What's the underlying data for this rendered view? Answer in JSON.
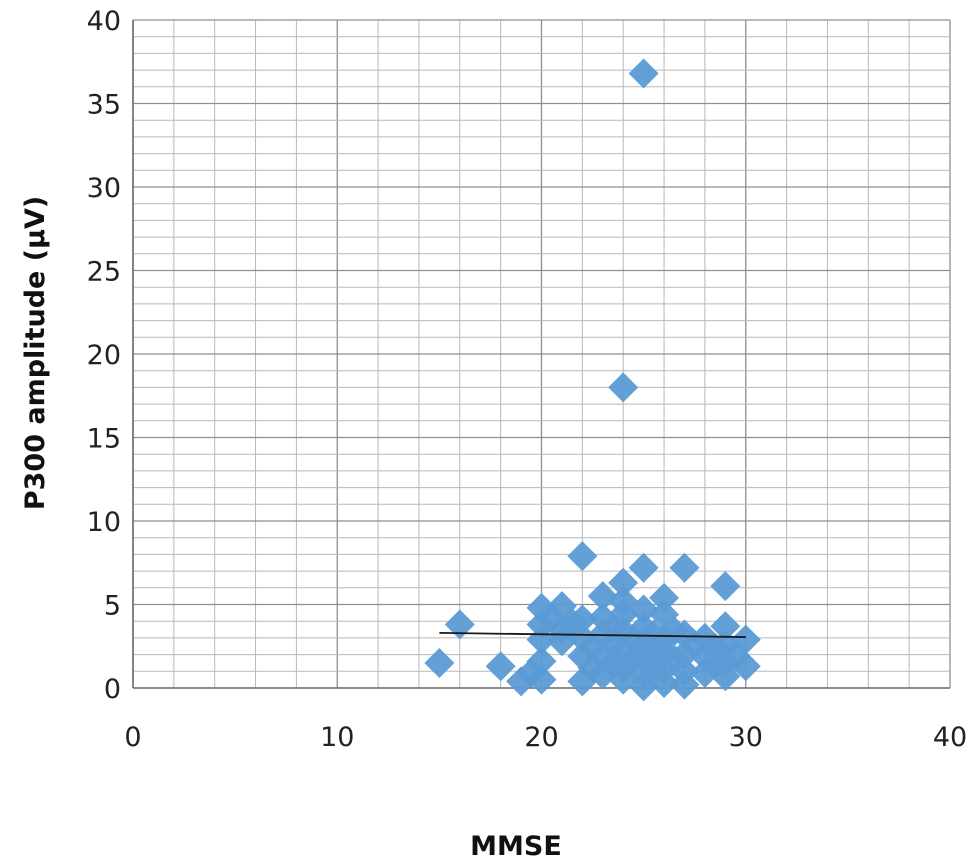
{
  "chart_data": {
    "type": "scatter",
    "title": "",
    "xlabel": "MMSE",
    "ylabel": "P300 amplitude (µV)",
    "xlim": [
      0,
      40
    ],
    "ylim": [
      0,
      40
    ],
    "x_ticks": [
      "0",
      "10",
      "20",
      "30",
      "40"
    ],
    "y_ticks": [
      "0",
      "5",
      "10",
      "15",
      "20",
      "25",
      "30",
      "35",
      "40"
    ],
    "x_minor_step": 2,
    "y_minor_step": 1,
    "grid": true,
    "legend": "none",
    "marker": "diamond",
    "marker_color": "#5b9bd5",
    "trendline_color": "#1a1a1a",
    "trendline": {
      "x": [
        15,
        30
      ],
      "y": [
        3.3,
        3.05
      ]
    },
    "series": [
      {
        "points": [
          [
            15,
            1.5
          ],
          [
            16,
            3.8
          ],
          [
            18,
            1.3
          ],
          [
            19,
            0.4
          ],
          [
            19.5,
            0.9
          ],
          [
            20,
            0.5
          ],
          [
            20,
            1.6
          ],
          [
            20,
            2.9
          ],
          [
            20,
            3.8
          ],
          [
            20,
            4.8
          ],
          [
            20.5,
            4.2
          ],
          [
            21,
            2.8
          ],
          [
            21,
            3.5
          ],
          [
            21,
            4.9
          ],
          [
            21.5,
            3.9
          ],
          [
            22,
            0.4
          ],
          [
            22,
            1.9
          ],
          [
            22,
            3.0
          ],
          [
            22,
            4.1
          ],
          [
            22,
            7.9
          ],
          [
            22.5,
            1.2
          ],
          [
            22.5,
            2.5
          ],
          [
            23,
            0.8
          ],
          [
            23,
            1.9
          ],
          [
            23,
            3.2
          ],
          [
            23,
            4.2
          ],
          [
            23,
            5.5
          ],
          [
            23.5,
            1.5
          ],
          [
            23.5,
            2.6
          ],
          [
            23.5,
            3.6
          ],
          [
            24,
            18.0
          ],
          [
            24,
            0.5
          ],
          [
            24,
            1.2
          ],
          [
            24,
            2.2
          ],
          [
            24,
            3.4
          ],
          [
            24,
            4.4
          ],
          [
            24,
            5.2
          ],
          [
            24,
            6.3
          ],
          [
            24.5,
            1.8
          ],
          [
            24.5,
            2.9
          ],
          [
            25,
            36.8
          ],
          [
            25,
            7.2
          ],
          [
            25,
            0.1
          ],
          [
            25,
            0.9
          ],
          [
            25,
            1.8
          ],
          [
            25,
            2.6
          ],
          [
            25,
            3.6
          ],
          [
            25,
            4.7
          ],
          [
            25.5,
            1.3
          ],
          [
            25.5,
            2.3
          ],
          [
            25.5,
            3.2
          ],
          [
            26,
            0.3
          ],
          [
            26,
            1.1
          ],
          [
            26,
            2.1
          ],
          [
            26,
            2.9
          ],
          [
            26,
            4.4
          ],
          [
            26,
            5.4
          ],
          [
            26.5,
            1.7
          ],
          [
            26.5,
            3.4
          ],
          [
            27,
            7.2
          ],
          [
            27,
            0.2
          ],
          [
            27,
            1.0
          ],
          [
            27,
            2.0
          ],
          [
            27,
            3.2
          ],
          [
            27.5,
            2.6
          ],
          [
            28,
            0.9
          ],
          [
            28,
            1.9
          ],
          [
            28,
            3.0
          ],
          [
            28.5,
            1.4
          ],
          [
            28.5,
            2.4
          ],
          [
            29,
            6.1
          ],
          [
            29,
            0.7
          ],
          [
            29,
            1.5
          ],
          [
            29,
            2.6
          ],
          [
            29,
            3.7
          ],
          [
            29.5,
            1.9
          ],
          [
            30,
            1.3
          ],
          [
            30,
            2.9
          ]
        ]
      }
    ]
  }
}
